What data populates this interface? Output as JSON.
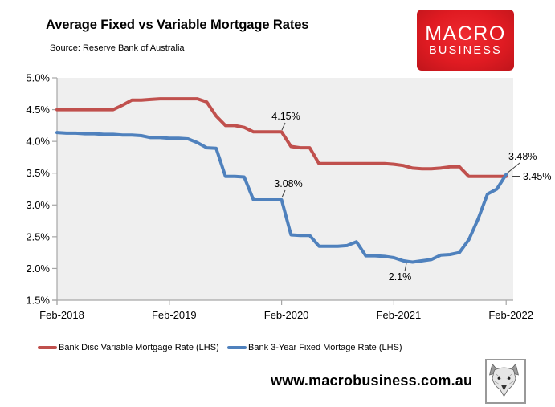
{
  "header": {
    "title": "Average Fixed vs Variable Mortgage Rates",
    "source": "Source: Reserve Bank of Australia",
    "logo": {
      "line1": "MACRO",
      "line2": "BUSINESS",
      "bg_color": "#e01b22",
      "text_color": "#ffffff"
    }
  },
  "footer": {
    "website": "www.macrobusiness.com.au",
    "wolf_logo": "wolf-head-sketch"
  },
  "chart_data": {
    "type": "line",
    "title": "Average Fixed vs Variable Mortgage Rates",
    "x": [
      "Feb-2018",
      "Mar-2018",
      "Apr-2018",
      "May-2018",
      "Jun-2018",
      "Jul-2018",
      "Aug-2018",
      "Sep-2018",
      "Oct-2018",
      "Nov-2018",
      "Dec-2018",
      "Jan-2019",
      "Feb-2019",
      "Mar-2019",
      "Apr-2019",
      "May-2019",
      "Jun-2019",
      "Jul-2019",
      "Aug-2019",
      "Sep-2019",
      "Oct-2019",
      "Nov-2019",
      "Dec-2019",
      "Jan-2020",
      "Feb-2020",
      "Mar-2020",
      "Apr-2020",
      "May-2020",
      "Jun-2020",
      "Jul-2020",
      "Aug-2020",
      "Sep-2020",
      "Oct-2020",
      "Nov-2020",
      "Dec-2020",
      "Jan-2021",
      "Feb-2021",
      "Mar-2021",
      "Apr-2021",
      "May-2021",
      "Jun-2021",
      "Jul-2021",
      "Aug-2021",
      "Sep-2021",
      "Oct-2021",
      "Nov-2021",
      "Dec-2021",
      "Jan-2022",
      "Feb-2022"
    ],
    "x_tick_labels": [
      "Feb-2018",
      "Feb-2019",
      "Feb-2020",
      "Feb-2021",
      "Feb-2022"
    ],
    "x_tick_indices": [
      0,
      12,
      24,
      36,
      48
    ],
    "ylim": [
      1.5,
      5.0
    ],
    "y_tick_step": 0.5,
    "y_tick_suffix": "%",
    "grid": false,
    "plot_bg": "#efefef",
    "axis_color": "#a6a6a6",
    "legend_position": "bottom",
    "series": [
      {
        "name": "Bank Disc Variable Mortgage Rate (LHS)",
        "color": "#c0504d",
        "values": [
          4.5,
          4.5,
          4.5,
          4.5,
          4.5,
          4.5,
          4.5,
          4.57,
          4.65,
          4.65,
          4.66,
          4.67,
          4.67,
          4.67,
          4.67,
          4.67,
          4.62,
          4.4,
          4.25,
          4.25,
          4.22,
          4.15,
          4.15,
          4.15,
          4.15,
          3.92,
          3.9,
          3.9,
          3.65,
          3.65,
          3.65,
          3.65,
          3.65,
          3.65,
          3.65,
          3.65,
          3.64,
          3.62,
          3.58,
          3.57,
          3.57,
          3.58,
          3.6,
          3.6,
          3.45,
          3.45,
          3.45,
          3.45,
          3.45
        ]
      },
      {
        "name": "Bank 3-Year Fixed Mortage Rate (LHS)",
        "color": "#4f81bd",
        "values": [
          4.14,
          4.13,
          4.13,
          4.12,
          4.12,
          4.11,
          4.11,
          4.1,
          4.1,
          4.09,
          4.06,
          4.06,
          4.05,
          4.05,
          4.04,
          3.98,
          3.9,
          3.89,
          3.45,
          3.45,
          3.44,
          3.08,
          3.08,
          3.08,
          3.08,
          2.53,
          2.52,
          2.52,
          2.35,
          2.35,
          2.35,
          2.36,
          2.42,
          2.2,
          2.2,
          2.19,
          2.17,
          2.12,
          2.1,
          2.12,
          2.14,
          2.21,
          2.22,
          2.25,
          2.45,
          2.78,
          3.17,
          3.25,
          3.48
        ]
      }
    ],
    "annotations": [
      {
        "text": "4.15%",
        "series_index": 0,
        "point_index": 24,
        "point_value": 4.15
      },
      {
        "text": "3.08%",
        "series_index": 1,
        "point_index": 24,
        "point_value": 3.08
      },
      {
        "text": "3.48%",
        "series_index": 1,
        "point_index": 48,
        "point_value": 3.48
      },
      {
        "text": "3.45%",
        "series_index": 0,
        "point_index": 48,
        "point_value": 3.45
      },
      {
        "text": "2.1%",
        "series_index": 1,
        "point_index": 38,
        "point_value": 2.1
      }
    ]
  }
}
